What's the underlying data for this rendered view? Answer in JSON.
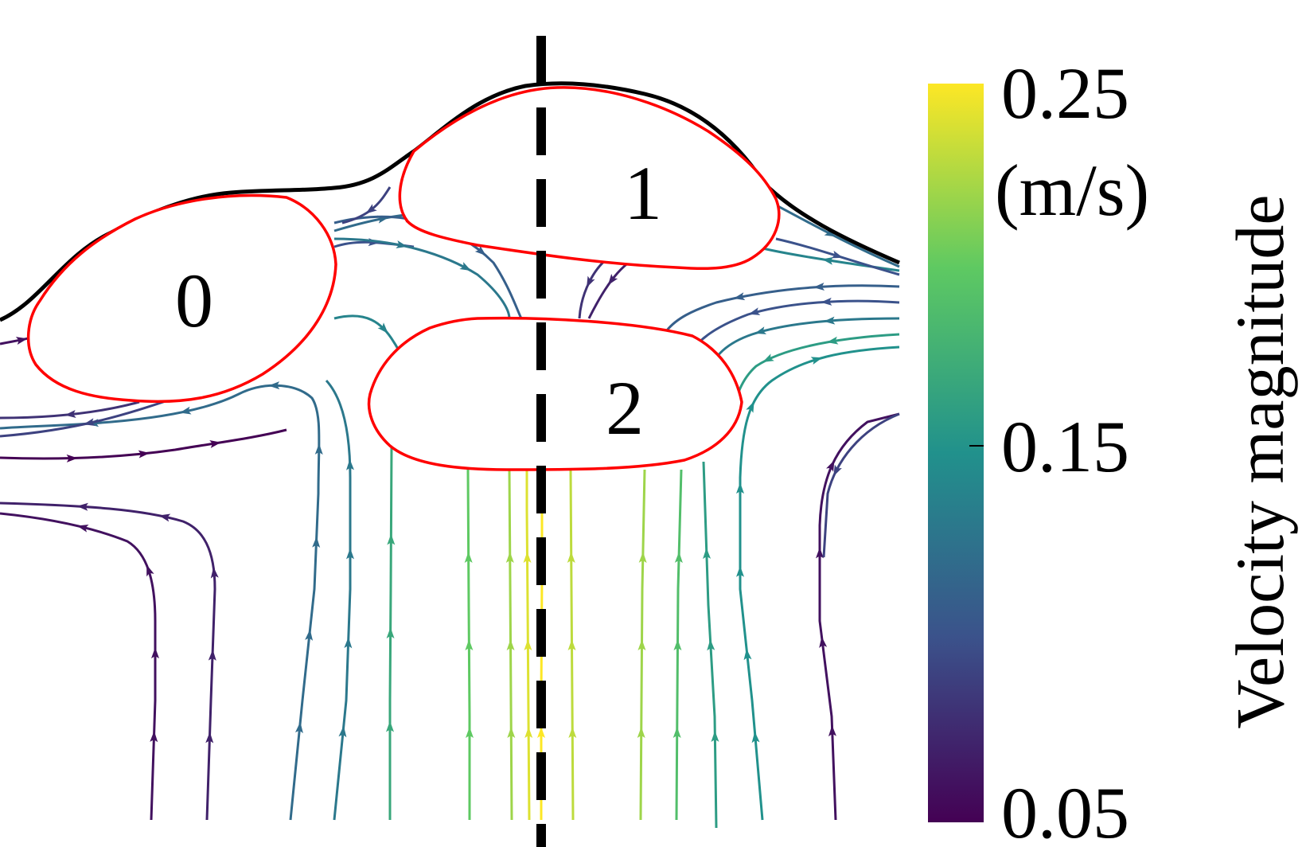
{
  "bubbles": [
    {
      "label": "0"
    },
    {
      "label": "1"
    },
    {
      "label": "2"
    }
  ],
  "colorbar": {
    "title": "Velocity magnitude",
    "unit": "(m/s)",
    "min": 0.05,
    "max": 0.25,
    "ticks": [
      {
        "value": 0.25,
        "label": "0.25"
      },
      {
        "value": 0.15,
        "label": "0.15"
      },
      {
        "value": 0.05,
        "label": "0.05"
      }
    ],
    "colormap": "viridis"
  },
  "colors": {
    "interface": "#ff0000",
    "free_surface": "#000000",
    "symmetry_axis": "#000000",
    "colormap_stops": [
      "#440154",
      "#3b528b",
      "#21918c",
      "#5ec962",
      "#fde725"
    ]
  },
  "streamlines": [
    {
      "speed": 0.24
    },
    {
      "speed": 0.25
    },
    {
      "speed": 0.22
    },
    {
      "speed": 0.23
    },
    {
      "speed": 0.2
    },
    {
      "speed": 0.22
    },
    {
      "speed": 0.19
    },
    {
      "speed": 0.17
    },
    {
      "speed": 0.16
    },
    {
      "speed": 0.15
    },
    {
      "speed": 0.13
    },
    {
      "speed": 0.12
    },
    {
      "speed": 0.07
    },
    {
      "speed": 0.06
    },
    {
      "speed": 0.06
    },
    {
      "speed": 0.05
    },
    {
      "speed": 0.08
    },
    {
      "speed": 0.09
    },
    {
      "speed": 0.1
    },
    {
      "speed": 0.12
    },
    {
      "speed": 0.13
    },
    {
      "speed": 0.14
    },
    {
      "speed": 0.11
    },
    {
      "speed": 0.09
    },
    {
      "speed": 0.08
    },
    {
      "speed": 0.07
    },
    {
      "speed": 0.11
    },
    {
      "speed": 0.1
    },
    {
      "speed": 0.13
    },
    {
      "speed": 0.14
    },
    {
      "speed": 0.16
    },
    {
      "speed": 0.12
    },
    {
      "speed": 0.1
    },
    {
      "speed": 0.09
    },
    {
      "speed": 0.06
    }
  ]
}
